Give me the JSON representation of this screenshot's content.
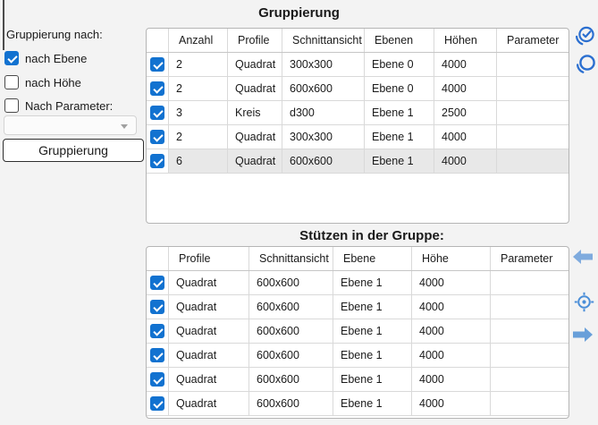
{
  "sidebar": {
    "group_label": "Gruppierung nach:",
    "checkboxes": [
      {
        "label": "nach Ebene",
        "checked": true
      },
      {
        "label": "nach Höhe",
        "checked": false
      },
      {
        "label": "Nach Parameter:",
        "checked": false
      }
    ],
    "parameter_dropdown": {
      "value": "",
      "enabled": false
    },
    "button_label": "Gruppierung"
  },
  "groups_table": {
    "title": "Gruppierung",
    "columns": [
      "",
      "Anzahl",
      "Profile",
      "Schnittansicht",
      "Ebenen",
      "Höhen",
      "Parameter"
    ],
    "rows": [
      {
        "checked": true,
        "selected": false,
        "cells": [
          "2",
          "Quadrat",
          "300x300",
          "Ebene 0",
          "4000",
          ""
        ]
      },
      {
        "checked": true,
        "selected": false,
        "cells": [
          "2",
          "Quadrat",
          "600x600",
          "Ebene 0",
          "4000",
          ""
        ]
      },
      {
        "checked": true,
        "selected": false,
        "cells": [
          "3",
          "Kreis",
          "d300",
          "Ebene 1",
          "2500",
          ""
        ]
      },
      {
        "checked": true,
        "selected": false,
        "cells": [
          "2",
          "Quadrat",
          "300x300",
          "Ebene 1",
          "4000",
          ""
        ]
      },
      {
        "checked": true,
        "selected": true,
        "cells": [
          "6",
          "Quadrat",
          "600x600",
          "Ebene 1",
          "4000",
          ""
        ]
      }
    ]
  },
  "members_table": {
    "title": "Stützen in der Gruppe:",
    "columns": [
      "",
      "Profile",
      "Schnittansicht",
      "Ebene",
      "Höhe",
      "Parameter"
    ],
    "rows": [
      {
        "checked": true,
        "selected": false,
        "cells": [
          "Quadrat",
          "600x600",
          "Ebene 1",
          "4000",
          ""
        ]
      },
      {
        "checked": true,
        "selected": false,
        "cells": [
          "Quadrat",
          "600x600",
          "Ebene 1",
          "4000",
          ""
        ]
      },
      {
        "checked": true,
        "selected": false,
        "cells": [
          "Quadrat",
          "600x600",
          "Ebene 1",
          "4000",
          ""
        ]
      },
      {
        "checked": true,
        "selected": false,
        "cells": [
          "Quadrat",
          "600x600",
          "Ebene 1",
          "4000",
          ""
        ]
      },
      {
        "checked": true,
        "selected": false,
        "cells": [
          "Quadrat",
          "600x600",
          "Ebene 1",
          "4000",
          ""
        ]
      },
      {
        "checked": true,
        "selected": false,
        "cells": [
          "Quadrat",
          "600x600",
          "Ebene 1",
          "4000",
          ""
        ]
      }
    ]
  },
  "icons": {
    "check_all": {
      "name": "check-all",
      "color": "#2b6fd0"
    },
    "uncheck_all": {
      "name": "uncheck-all",
      "color": "#2b6fd0"
    },
    "move_left": {
      "name": "move-left-arrow",
      "color": "#7fabde"
    },
    "locate": {
      "name": "locate-crosshair",
      "color": "#4a8ed8"
    },
    "move_right": {
      "name": "move-right-arrow",
      "color": "#689fd9"
    }
  },
  "colors": {
    "accent_checkbox": "#1272d0",
    "selected_row": "#e8e8e8",
    "background": "#f3f3f3"
  }
}
